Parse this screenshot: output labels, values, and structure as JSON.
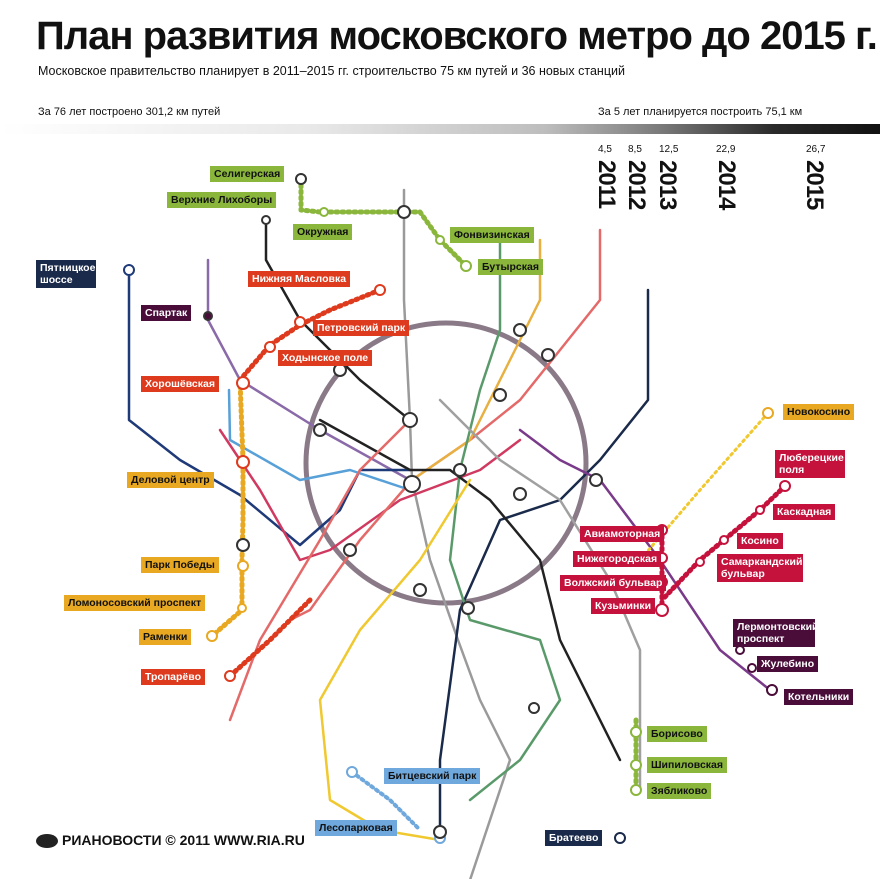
{
  "header": {
    "title": "План развития московского метро до 2015 г.",
    "subtitle": "Московское правительство планирует в 2011–2015 гг. строительство 75 км путей и 36 новых станций",
    "left_stat": "За 76 лет построено 301,2 км путей",
    "right_stat": "За 5 лет планируется построить 75,1 км"
  },
  "timeline": [
    {
      "km": "4,5",
      "year": "2011"
    },
    {
      "km": "8,5",
      "year": "2012"
    },
    {
      "km": "12,5",
      "year": "2013"
    },
    {
      "km": "22,9",
      "year": "2014"
    },
    {
      "km": "26,7",
      "year": "2015"
    }
  ],
  "colors": {
    "green_2011": "#8ab63c",
    "orange_2012": "#e8a822",
    "red_2013": "#dd3a1e",
    "crimson_2014": "#c4123c",
    "dark_2015": "#4a0d3a",
    "blue_2015": "#6fa8dc",
    "navy_2015": "#1a2a4a"
  },
  "stations": {
    "seligerskaya": "Селигерская",
    "verkhnie_likhobory": "Верхние Лихоборы",
    "okruzhnaya": "Окружная",
    "fonvizinskaya": "Фонвизинская",
    "butyrskaya": "Бутырская",
    "nizhnyaya_maslovka": "Нижняя Масловка",
    "petrovsky_park": "Петровский парк",
    "khodynskoe_pole": "Ходынское поле",
    "pyatnitskoe_shosse": "Пятницкое шоссе",
    "spartak": "Спартак",
    "khoroshevskaya": "Хорошёвская",
    "delovoy_tsentr": "Деловой центр",
    "park_pobedy": "Парк Победы",
    "lomonosovsky": "Ломоносовский проспект",
    "ramenki": "Раменки",
    "troparevo": "Тропарёво",
    "novokosino": "Новокосино",
    "lyuberetskie_polya": "Люберецкие поля",
    "kaskadnaya": "Каскадная",
    "kosino": "Косино",
    "samarkandsky": "Самаркандский бульвар",
    "aviamotornaya": "Авиамоторная",
    "nizhegorodskaya": "Нижегородская",
    "volzhsky": "Волжский бульвар",
    "kuzminki": "Кузьминки",
    "lermontovsky": "Лермонтовский проспект",
    "zhulebino": "Жулебино",
    "kotelniki": "Котельники",
    "borisovo": "Борисово",
    "shipilovskaya": "Шипиловская",
    "zyablikovo": "Зябликово",
    "bitsevsky": "Битцевский парк",
    "lesoparkovaya": "Лесопарковая",
    "brateevo": "Братеево"
  },
  "footer": {
    "logo": "РИАНОВОСТИ © 2011 WWW.RIA.RU"
  }
}
